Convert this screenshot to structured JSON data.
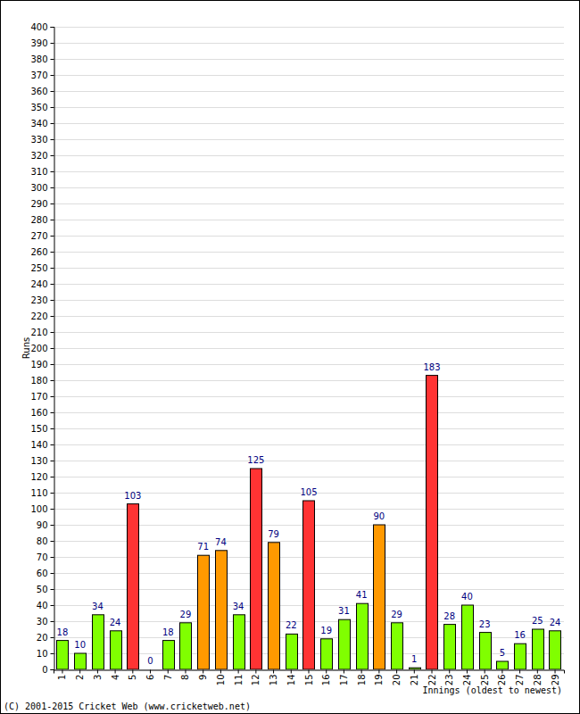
{
  "chart_data": {
    "type": "bar",
    "x_label": "Innings (oldest to newest)",
    "y_label": "Runs",
    "annotation": "(C) 2001-2015 Cricket Web (www.cricketweb.net)",
    "categories": [
      "1",
      "2",
      "3",
      "4",
      "5",
      "6",
      "7",
      "8",
      "9",
      "10",
      "11",
      "12",
      "13",
      "14",
      "15",
      "16",
      "17",
      "18",
      "19",
      "20",
      "21",
      "22",
      "23",
      "24",
      "25",
      "26",
      "27",
      "28",
      "29"
    ],
    "values": [
      18,
      10,
      34,
      24,
      103,
      0,
      18,
      29,
      71,
      74,
      34,
      125,
      79,
      22,
      105,
      19,
      31,
      41,
      90,
      29,
      1,
      183,
      28,
      40,
      23,
      5,
      16,
      25,
      24
    ],
    "colors": [
      "#80ff00",
      "#80ff00",
      "#80ff00",
      "#80ff00",
      "#ff3333",
      "#80ff00",
      "#80ff00",
      "#80ff00",
      "#ff9900",
      "#ff9900",
      "#80ff00",
      "#ff3333",
      "#ff9900",
      "#80ff00",
      "#ff3333",
      "#80ff00",
      "#80ff00",
      "#80ff00",
      "#ff9900",
      "#80ff00",
      "#80ff00",
      "#ff3333",
      "#80ff00",
      "#80ff00",
      "#80ff00",
      "#80ff00",
      "#80ff00",
      "#80ff00",
      "#80ff00"
    ],
    "ylim": [
      0,
      400
    ],
    "yticks": [
      0,
      10,
      20,
      30,
      40,
      50,
      60,
      70,
      80,
      90,
      100,
      110,
      120,
      130,
      140,
      150,
      160,
      170,
      180,
      190,
      200,
      210,
      220,
      230,
      240,
      250,
      260,
      270,
      280,
      290,
      300,
      310,
      320,
      330,
      340,
      350,
      360,
      370,
      380,
      390,
      400
    ],
    "grid": true,
    "data_labels": true
  }
}
